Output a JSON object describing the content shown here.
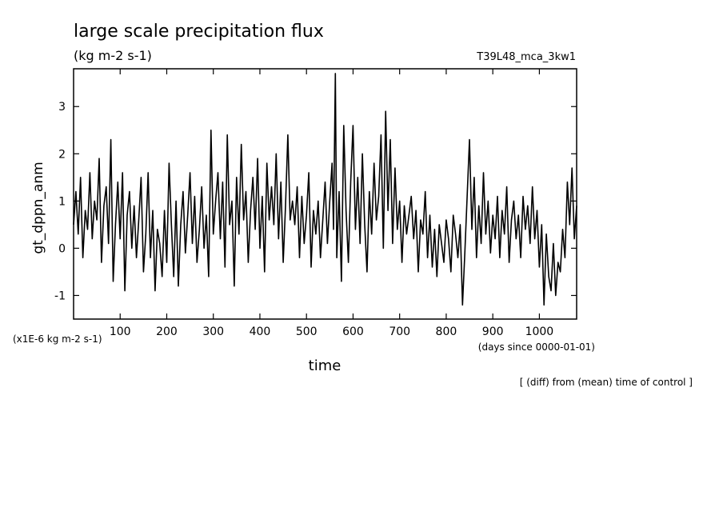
{
  "chart_data": {
    "type": "line",
    "title": "large scale precipitation flux",
    "subtitle": "(kg m-2 s-1)",
    "run_label": "T39L48_mca_3kw1",
    "ylabel": "gt_dppn_anm",
    "xlabel": "time",
    "x_unit_label": "(days since 0000-01-01)",
    "y_unit_label": "(x1E-6 kg m-2 s-1)",
    "footnote": "[ (diff) from (mean) time of control ]",
    "xlim": [
      0,
      1080
    ],
    "ylim": [
      -1.5,
      3.8
    ],
    "xticks": [
      100,
      200,
      300,
      400,
      500,
      600,
      700,
      800,
      900,
      1000
    ],
    "xtick_labels": [
      "100",
      "200",
      "300",
      "400",
      "500",
      "600",
      "700",
      "800",
      "900",
      "1000"
    ],
    "yticks": [
      -1,
      0,
      1,
      2,
      3
    ],
    "ytick_labels": [
      "-1",
      "0",
      "1",
      "2",
      "3"
    ],
    "grid": false,
    "legend": "none",
    "line_color": "#000000",
    "series": [
      {
        "values": [
          [
            0,
            0.5
          ],
          [
            5,
            1.2
          ],
          [
            10,
            0.3
          ],
          [
            15,
            1.5
          ],
          [
            20,
            -0.2
          ],
          [
            25,
            0.8
          ],
          [
            30,
            0.4
          ],
          [
            35,
            1.6
          ],
          [
            40,
            0.2
          ],
          [
            45,
            1.0
          ],
          [
            50,
            0.6
          ],
          [
            55,
            1.9
          ],
          [
            60,
            -0.3
          ],
          [
            65,
            0.9
          ],
          [
            70,
            1.3
          ],
          [
            75,
            0.1
          ],
          [
            80,
            2.3
          ],
          [
            85,
            -0.7
          ],
          [
            90,
            0.5
          ],
          [
            95,
            1.4
          ],
          [
            100,
            0.2
          ],
          [
            105,
            1.6
          ],
          [
            110,
            -0.9
          ],
          [
            115,
            0.7
          ],
          [
            120,
            1.2
          ],
          [
            125,
            0.0
          ],
          [
            130,
            0.9
          ],
          [
            135,
            -0.2
          ],
          [
            140,
            0.6
          ],
          [
            145,
            1.5
          ],
          [
            150,
            -0.5
          ],
          [
            155,
            0.3
          ],
          [
            160,
            1.6
          ],
          [
            165,
            -0.2
          ],
          [
            170,
            0.8
          ],
          [
            175,
            -0.9
          ],
          [
            180,
            0.4
          ],
          [
            185,
            0.1
          ],
          [
            190,
            -0.6
          ],
          [
            195,
            0.8
          ],
          [
            200,
            -0.3
          ],
          [
            205,
            1.8
          ],
          [
            210,
            0.5
          ],
          [
            215,
            -0.6
          ],
          [
            220,
            1.0
          ],
          [
            225,
            -0.8
          ],
          [
            230,
            0.5
          ],
          [
            235,
            1.2
          ],
          [
            240,
            -0.1
          ],
          [
            245,
            0.7
          ],
          [
            250,
            1.6
          ],
          [
            255,
            0.1
          ],
          [
            260,
            1.1
          ],
          [
            265,
            -0.3
          ],
          [
            270,
            0.4
          ],
          [
            275,
            1.3
          ],
          [
            280,
            0.0
          ],
          [
            285,
            0.7
          ],
          [
            290,
            -0.6
          ],
          [
            295,
            2.5
          ],
          [
            300,
            0.3
          ],
          [
            305,
            1.0
          ],
          [
            310,
            1.6
          ],
          [
            315,
            0.2
          ],
          [
            320,
            1.4
          ],
          [
            325,
            -0.4
          ],
          [
            330,
            2.4
          ],
          [
            335,
            0.5
          ],
          [
            340,
            1.0
          ],
          [
            345,
            -0.8
          ],
          [
            350,
            1.5
          ],
          [
            355,
            0.3
          ],
          [
            360,
            2.2
          ],
          [
            365,
            0.6
          ],
          [
            370,
            1.2
          ],
          [
            375,
            -0.3
          ],
          [
            380,
            0.8
          ],
          [
            385,
            1.5
          ],
          [
            390,
            0.4
          ],
          [
            395,
            1.9
          ],
          [
            400,
            0.0
          ],
          [
            405,
            1.1
          ],
          [
            410,
            -0.5
          ],
          [
            415,
            1.8
          ],
          [
            420,
            0.6
          ],
          [
            425,
            1.3
          ],
          [
            430,
            0.5
          ],
          [
            435,
            2.0
          ],
          [
            440,
            0.2
          ],
          [
            445,
            1.4
          ],
          [
            450,
            -0.3
          ],
          [
            455,
            0.9
          ],
          [
            460,
            2.4
          ],
          [
            465,
            0.6
          ],
          [
            470,
            1.0
          ],
          [
            475,
            0.5
          ],
          [
            480,
            1.3
          ],
          [
            485,
            -0.2
          ],
          [
            490,
            1.1
          ],
          [
            495,
            0.1
          ],
          [
            500,
            0.7
          ],
          [
            505,
            1.6
          ],
          [
            510,
            -0.4
          ],
          [
            515,
            0.8
          ],
          [
            520,
            0.3
          ],
          [
            525,
            1.0
          ],
          [
            530,
            -0.2
          ],
          [
            535,
            0.6
          ],
          [
            540,
            1.4
          ],
          [
            545,
            0.1
          ],
          [
            550,
            1.0
          ],
          [
            555,
            1.8
          ],
          [
            558,
            0.4
          ],
          [
            562,
            3.7
          ],
          [
            565,
            -0.2
          ],
          [
            570,
            1.2
          ],
          [
            575,
            -0.7
          ],
          [
            580,
            2.6
          ],
          [
            585,
            0.8
          ],
          [
            590,
            -0.3
          ],
          [
            595,
            1.4
          ],
          [
            600,
            2.6
          ],
          [
            605,
            0.4
          ],
          [
            610,
            1.5
          ],
          [
            615,
            0.1
          ],
          [
            620,
            2.0
          ],
          [
            625,
            0.5
          ],
          [
            630,
            -0.5
          ],
          [
            635,
            1.2
          ],
          [
            640,
            0.3
          ],
          [
            645,
            1.8
          ],
          [
            650,
            0.6
          ],
          [
            655,
            1.1
          ],
          [
            660,
            2.4
          ],
          [
            665,
            0.0
          ],
          [
            670,
            2.9
          ],
          [
            675,
            0.8
          ],
          [
            680,
            2.3
          ],
          [
            685,
            0.1
          ],
          [
            690,
            1.7
          ],
          [
            695,
            0.4
          ],
          [
            700,
            1.0
          ],
          [
            705,
            -0.3
          ],
          [
            710,
            0.9
          ],
          [
            715,
            0.3
          ],
          [
            720,
            0.7
          ],
          [
            725,
            1.1
          ],
          [
            730,
            0.2
          ],
          [
            735,
            0.8
          ],
          [
            740,
            -0.5
          ],
          [
            745,
            0.6
          ],
          [
            750,
            0.3
          ],
          [
            755,
            1.2
          ],
          [
            760,
            -0.2
          ],
          [
            765,
            0.7
          ],
          [
            770,
            -0.4
          ],
          [
            775,
            0.4
          ],
          [
            780,
            -0.6
          ],
          [
            785,
            0.5
          ],
          [
            790,
            0.1
          ],
          [
            795,
            -0.3
          ],
          [
            800,
            0.6
          ],
          [
            805,
            0.2
          ],
          [
            810,
            -0.5
          ],
          [
            815,
            0.7
          ],
          [
            820,
            0.3
          ],
          [
            825,
            -0.2
          ],
          [
            830,
            0.5
          ],
          [
            835,
            -1.2
          ],
          [
            840,
            -0.1
          ],
          [
            845,
            1.1
          ],
          [
            850,
            2.3
          ],
          [
            855,
            0.4
          ],
          [
            860,
            1.5
          ],
          [
            865,
            -0.2
          ],
          [
            870,
            0.9
          ],
          [
            875,
            0.1
          ],
          [
            880,
            1.6
          ],
          [
            885,
            0.3
          ],
          [
            890,
            1.0
          ],
          [
            895,
            -0.1
          ],
          [
            900,
            0.7
          ],
          [
            905,
            0.2
          ],
          [
            910,
            1.1
          ],
          [
            915,
            -0.2
          ],
          [
            920,
            0.8
          ],
          [
            925,
            0.3
          ],
          [
            930,
            1.3
          ],
          [
            935,
            -0.3
          ],
          [
            940,
            0.6
          ],
          [
            945,
            1.0
          ],
          [
            950,
            0.2
          ],
          [
            955,
            0.7
          ],
          [
            960,
            -0.2
          ],
          [
            965,
            1.1
          ],
          [
            970,
            0.4
          ],
          [
            975,
            0.9
          ],
          [
            980,
            0.1
          ],
          [
            985,
            1.3
          ],
          [
            990,
            0.2
          ],
          [
            995,
            0.8
          ],
          [
            1000,
            -0.4
          ],
          [
            1005,
            0.5
          ],
          [
            1010,
            -1.2
          ],
          [
            1015,
            0.3
          ],
          [
            1020,
            -0.6
          ],
          [
            1025,
            -0.9
          ],
          [
            1030,
            0.1
          ],
          [
            1035,
            -1.0
          ],
          [
            1040,
            -0.3
          ],
          [
            1045,
            -0.5
          ],
          [
            1050,
            0.4
          ],
          [
            1055,
            -0.2
          ],
          [
            1060,
            1.4
          ],
          [
            1065,
            0.5
          ],
          [
            1070,
            1.7
          ],
          [
            1075,
            0.2
          ],
          [
            1080,
            0.9
          ]
        ]
      }
    ]
  }
}
